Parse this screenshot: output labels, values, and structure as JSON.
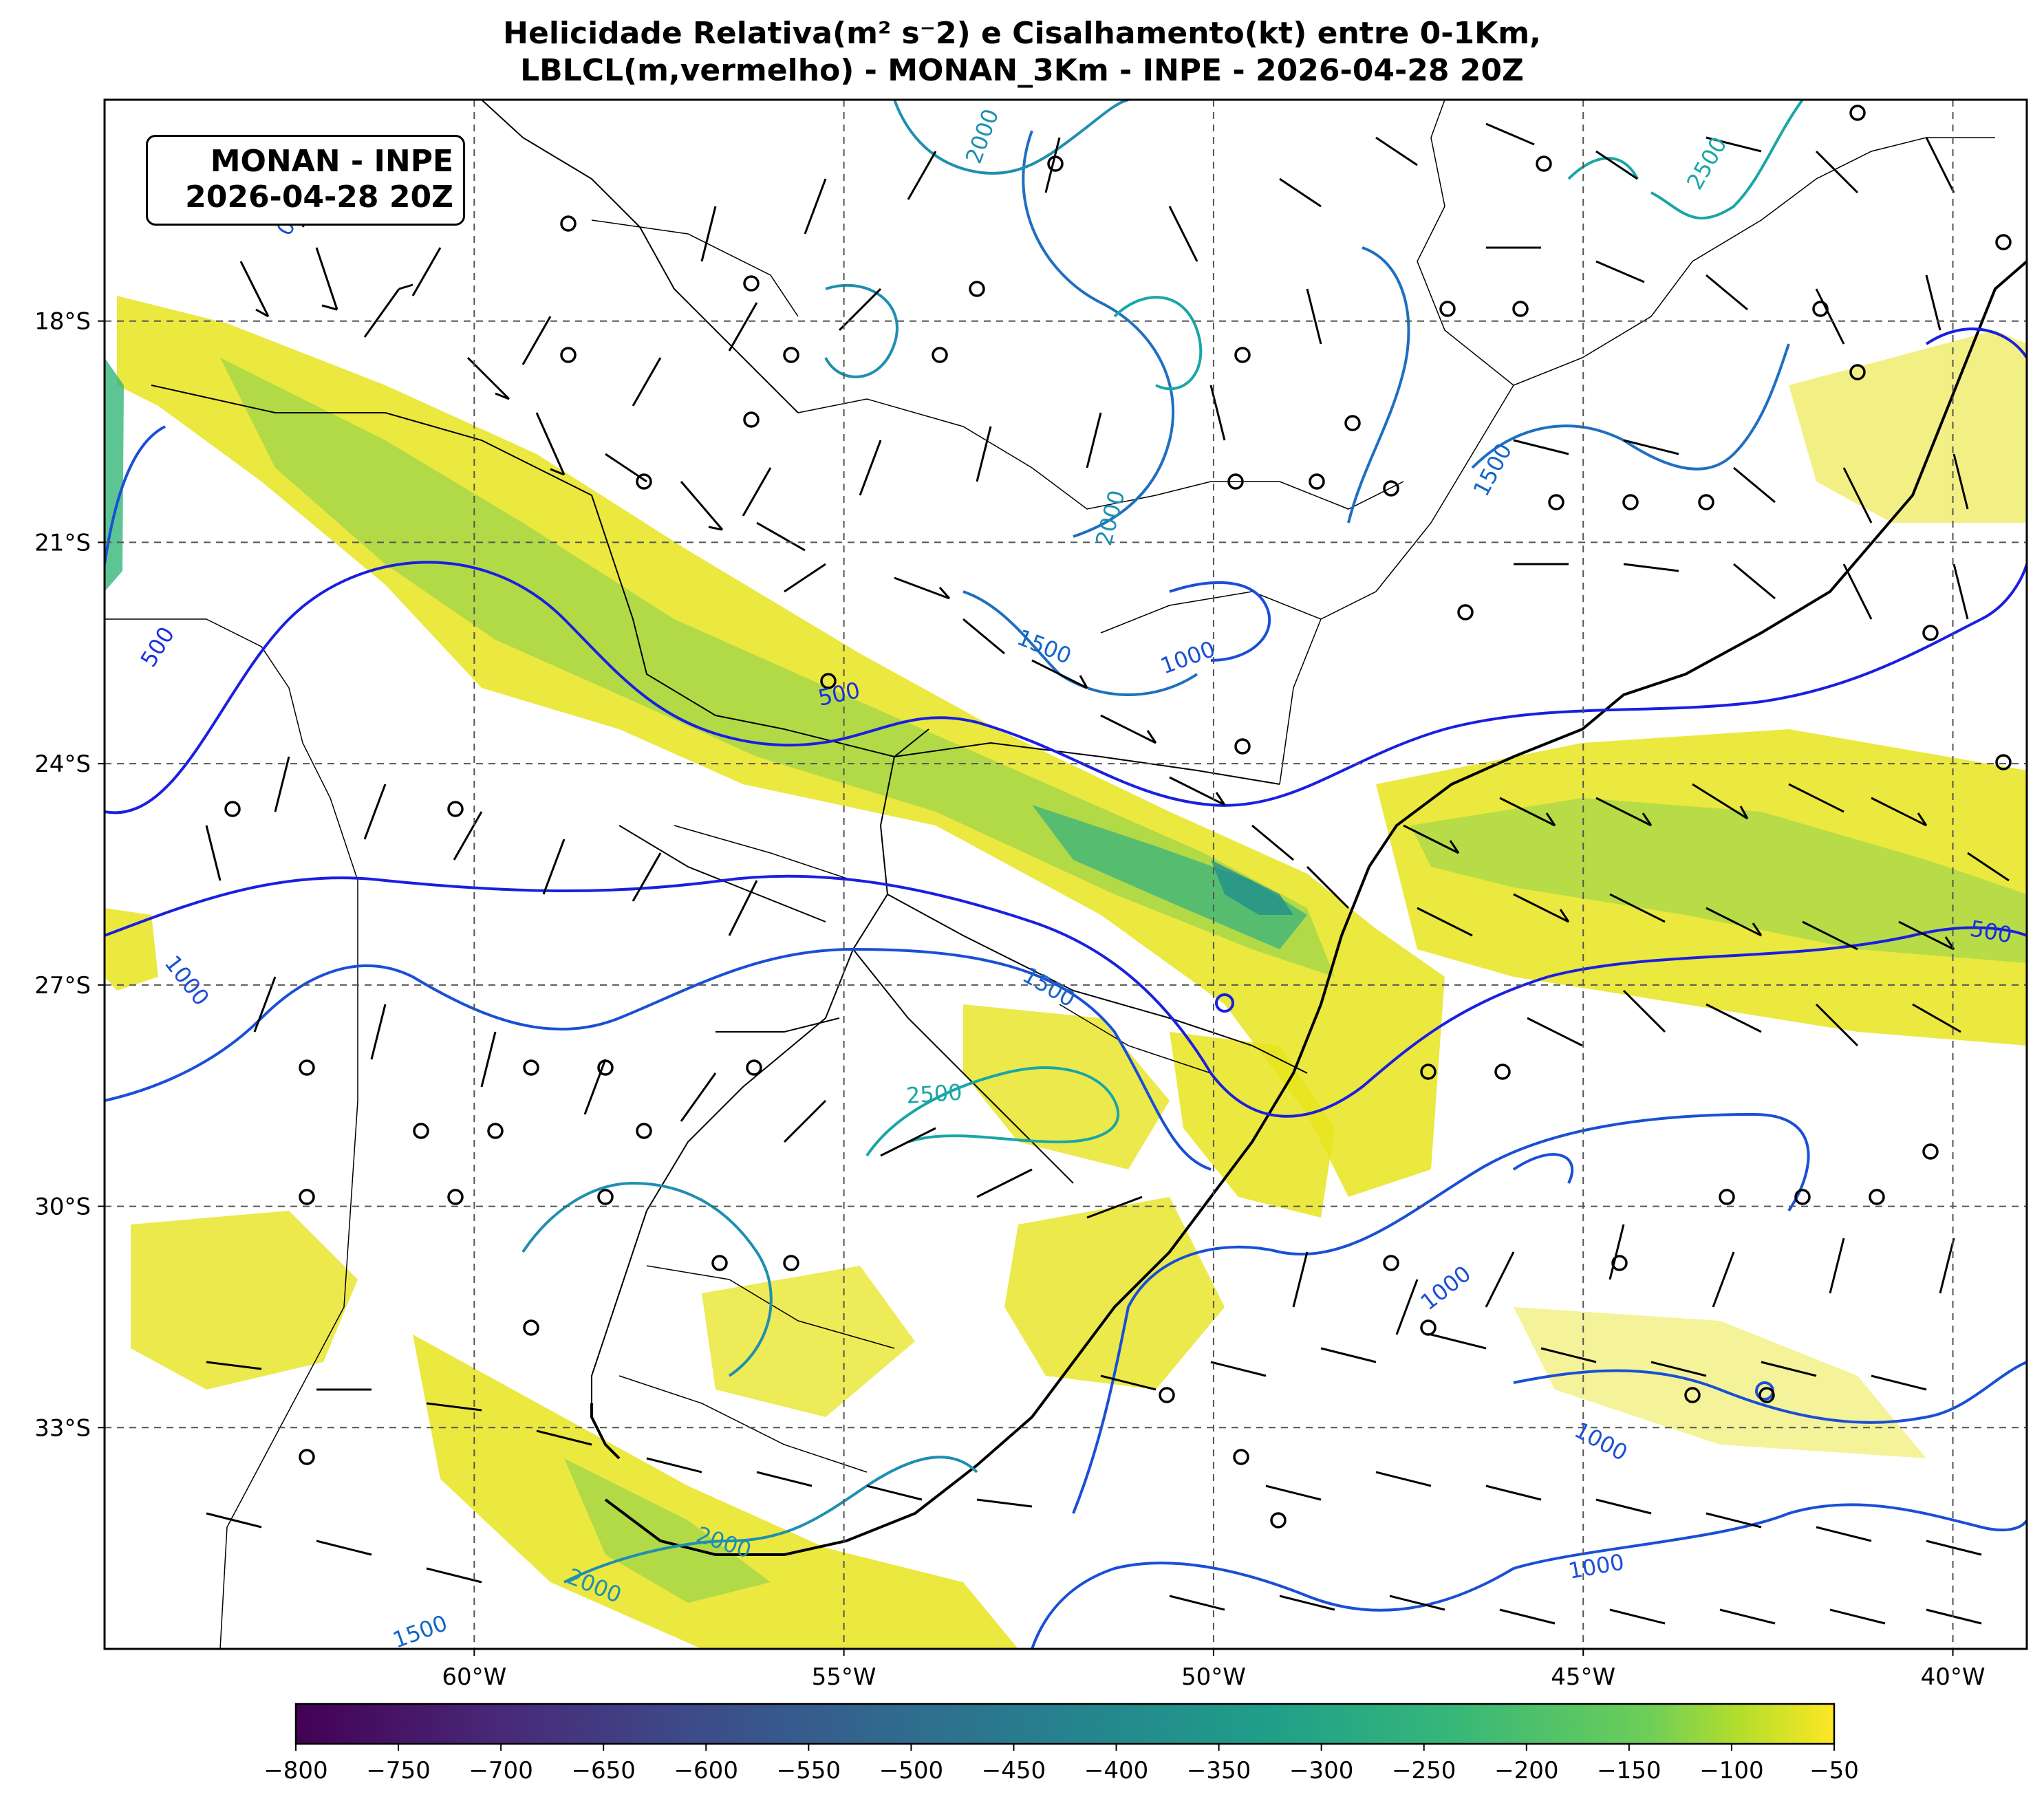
{
  "title": {
    "line1": "Helicidade Relativa(m² s⁻2) e Cisalhamento(kt) entre 0-1Km,",
    "line2": "LBLCL(m,vermelho) - MONAN_3Km - INPE - 2026-04-28 20Z"
  },
  "infobox": {
    "line1": "MONAN - INPE",
    "line2": "2026-04-28 20Z"
  },
  "map": {
    "lon_range": [
      -65,
      -39
    ],
    "lat_range": [
      -36,
      -15
    ],
    "lon_ticks": [
      {
        "lon": -60,
        "label": "60°W"
      },
      {
        "lon": -55,
        "label": "55°W"
      },
      {
        "lon": -50,
        "label": "50°W"
      },
      {
        "lon": -45,
        "label": "45°W"
      },
      {
        "lon": -40,
        "label": "40°W"
      }
    ],
    "lat_ticks": [
      {
        "lat": -18,
        "label": "18°S"
      },
      {
        "lat": -21,
        "label": "21°S"
      },
      {
        "lat": -24,
        "label": "24°S"
      },
      {
        "lat": -27,
        "label": "27°S"
      },
      {
        "lat": -30,
        "label": "30°S"
      },
      {
        "lat": -33,
        "label": "33°S"
      }
    ],
    "gridlines": true
  },
  "colorbar": {
    "colormap": "viridis",
    "ticks": [
      "−800",
      "−750",
      "−700",
      "−650",
      "−600",
      "−550",
      "−500",
      "−450",
      "−400",
      "−350",
      "−300",
      "−250",
      "−200",
      "−150",
      "−100",
      "−50"
    ],
    "min": -800,
    "max": -50
  },
  "contour_labels": [
    {
      "text": "2000",
      "color": "#1f8fb0"
    },
    {
      "text": "2500",
      "color": "#1aa6a6"
    },
    {
      "text": "1500",
      "color": "#1565c8"
    },
    {
      "text": "2000",
      "color": "#1f8fb0"
    },
    {
      "text": "1500",
      "color": "#1565c8"
    },
    {
      "text": "1000",
      "color": "#1a4fd6"
    },
    {
      "text": "500",
      "color": "#1a2fe0"
    },
    {
      "text": "500",
      "color": "#1a2fe0"
    },
    {
      "text": "500",
      "color": "#1a2fe0"
    },
    {
      "text": "1000",
      "color": "#1a4fd6"
    },
    {
      "text": "1500",
      "color": "#1565c8"
    },
    {
      "text": "2500",
      "color": "#1aa6a6"
    },
    {
      "text": "1000",
      "color": "#1a4fd6"
    },
    {
      "text": "1000",
      "color": "#1a4fd6"
    },
    {
      "text": "1000",
      "color": "#1a4fd6"
    },
    {
      "text": "2000",
      "color": "#1f8fb0"
    },
    {
      "text": "2000",
      "color": "#1f8fb0"
    },
    {
      "text": "1500",
      "color": "#1565c8"
    },
    {
      "text": "0",
      "color": "#1a4fd6"
    }
  ],
  "contour_colors": {
    "c500": "#1a1fe0",
    "c1000": "#1a4fd6",
    "c1500": "#1f6fc0",
    "c2000": "#1f8fb0",
    "c2500": "#1aa6a6"
  },
  "helicity_colors": {
    "low": "#f1e51d",
    "mid": "#8fd744",
    "high": "#35b779",
    "max": "#21918c"
  }
}
